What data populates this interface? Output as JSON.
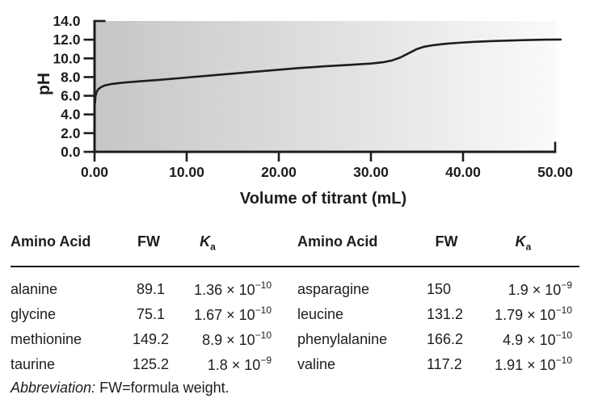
{
  "colors": {
    "ink": "#1d1d1d",
    "plot_gradient_left": "#c6c6c6",
    "plot_gradient_mid": "#e2e2e2",
    "plot_gradient_right": "#fafafa",
    "curve": "#1d1d1d"
  },
  "chart_data": {
    "type": "line",
    "title": "",
    "xlabel": "Volume of titrant (mL)",
    "ylabel": "pH",
    "xlim": [
      0,
      50
    ],
    "ylim": [
      0,
      14
    ],
    "grid": false,
    "legend": "none",
    "plot_area_fill": "gray gradient, darker at left fading to white at right",
    "x_ticks": {
      "values": [
        0,
        10,
        20,
        30,
        40,
        50
      ],
      "labels": [
        "0.00",
        "10.00",
        "20.00",
        "30.00",
        "40.00",
        "50.00"
      ]
    },
    "y_ticks": {
      "values": [
        0,
        2,
        4,
        6,
        8,
        10,
        12,
        14
      ],
      "labels": [
        "0.0",
        "2.0",
        "4.0",
        "6.0",
        "8.0",
        "10.0",
        "12.0",
        "14.0"
      ]
    },
    "series": [
      {
        "name": "titration curve",
        "points": [
          [
            0.05,
            5.25
          ],
          [
            0.1,
            5.9
          ],
          [
            0.2,
            6.35
          ],
          [
            0.4,
            6.7
          ],
          [
            0.7,
            6.92
          ],
          [
            1.1,
            7.1
          ],
          [
            1.8,
            7.25
          ],
          [
            3,
            7.4
          ],
          [
            5,
            7.55
          ],
          [
            7,
            7.7
          ],
          [
            10,
            7.95
          ],
          [
            13,
            8.2
          ],
          [
            16,
            8.45
          ],
          [
            19,
            8.7
          ],
          [
            22,
            8.95
          ],
          [
            25,
            9.15
          ],
          [
            27.5,
            9.3
          ],
          [
            30,
            9.45
          ],
          [
            31.3,
            9.58
          ],
          [
            32.3,
            9.78
          ],
          [
            33.2,
            10.1
          ],
          [
            34.2,
            10.6
          ],
          [
            35,
            11.0
          ],
          [
            35.8,
            11.25
          ],
          [
            36.8,
            11.42
          ],
          [
            38,
            11.55
          ],
          [
            39.5,
            11.67
          ],
          [
            41,
            11.76
          ],
          [
            43,
            11.85
          ],
          [
            45,
            11.91
          ],
          [
            47,
            11.96
          ],
          [
            49,
            12.0
          ],
          [
            50.6,
            12.02
          ]
        ]
      }
    ]
  },
  "table": {
    "headers": {
      "name": "Amino Acid",
      "fw": "FW",
      "ka_symbol": "K",
      "ka_sub": "a"
    },
    "sections": [
      {
        "rows": [
          {
            "name": "alanine",
            "fw": "89.1",
            "ka_text": "1.36 × 10",
            "ka_exp": "−10"
          },
          {
            "name": "glycine",
            "fw": "75.1",
            "ka_text": "1.67 × 10",
            "ka_exp": "−10"
          },
          {
            "name": "methionine",
            "fw": "149.2",
            "ka_text": "8.9 × 10",
            "ka_exp": "−10"
          },
          {
            "name": "taurine",
            "fw": "125.2",
            "ka_text": "1.8 × 10",
            "ka_exp": "−9"
          }
        ]
      },
      {
        "rows": [
          {
            "name": "asparagine",
            "fw": "150",
            "ka_text": "1.9 × 10",
            "ka_exp": "−9"
          },
          {
            "name": "leucine",
            "fw": "131.2",
            "ka_text": "1.79 × 10",
            "ka_exp": "−10"
          },
          {
            "name": "phenylalanine",
            "fw": "166.2",
            "ka_text": "4.9 × 10",
            "ka_exp": "−10"
          },
          {
            "name": "valine",
            "fw": "117.2",
            "ka_text": "1.91 × 10",
            "ka_exp": "−10"
          }
        ]
      }
    ],
    "footnote": {
      "italic": "Abbreviation:",
      "text": " FW=formula weight."
    }
  }
}
